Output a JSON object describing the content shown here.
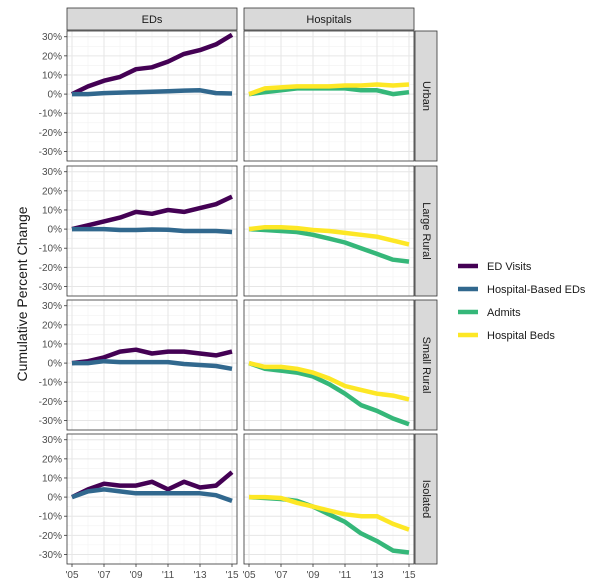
{
  "chart_data": {
    "type": "line",
    "ylabel": "Cumulative Percent Change",
    "xlabel": "",
    "columns": [
      "EDs",
      "Hospitals"
    ],
    "rows": [
      "Urban",
      "Large Rural",
      "Small Rural",
      "Isolated"
    ],
    "x": [
      2005,
      2006,
      2007,
      2008,
      2009,
      2010,
      2011,
      2012,
      2013,
      2014,
      2015
    ],
    "x_tick_labels": [
      "'05",
      "'07",
      "'09",
      "'11",
      "'13",
      "'15"
    ],
    "x_tick_values": [
      2005,
      2007,
      2009,
      2011,
      2013,
      2015
    ],
    "ylim": [
      -35,
      33
    ],
    "y_tick_labels": [
      "-30%",
      "-20%",
      "-10%",
      "0%",
      "10%",
      "20%",
      "30%"
    ],
    "y_tick_values": [
      -30,
      -20,
      -10,
      0,
      10,
      20,
      30
    ],
    "grid": true,
    "legend_position": "right",
    "legend": [
      {
        "name": "ED Visits",
        "color": "#440154"
      },
      {
        "name": "Hospital-Based EDs",
        "color": "#31688e"
      },
      {
        "name": "Admits",
        "color": "#35b779"
      },
      {
        "name": "Hospital Beds",
        "color": "#fde725"
      }
    ],
    "panels": [
      {
        "row": "Urban",
        "col": "EDs",
        "series": [
          {
            "name": "ED Visits",
            "values": [
              0,
              4,
              7,
              9,
              13,
              14,
              17,
              21,
              23,
              26,
              31
            ]
          },
          {
            "name": "Hospital-Based EDs",
            "values": [
              0,
              0,
              0.5,
              0.8,
              1,
              1.2,
              1.5,
              1.8,
              2,
              0.5,
              0.3
            ]
          }
        ]
      },
      {
        "row": "Urban",
        "col": "Hospitals",
        "series": [
          {
            "name": "Admits",
            "values": [
              0,
              1,
              2,
              3,
              3,
              3,
              3,
              2,
              2,
              0,
              1
            ]
          },
          {
            "name": "Hospital Beds",
            "values": [
              0,
              3,
              3.5,
              4,
              4,
              4,
              4.5,
              4.5,
              5,
              4.5,
              5
            ]
          }
        ]
      },
      {
        "row": "Large Rural",
        "col": "EDs",
        "series": [
          {
            "name": "ED Visits",
            "values": [
              0,
              2,
              4,
              6,
              9,
              8,
              10,
              9,
              11,
              13,
              17
            ]
          },
          {
            "name": "Hospital-Based EDs",
            "values": [
              0,
              0,
              0,
              -0.5,
              -0.5,
              -0.2,
              -0.3,
              -1,
              -1,
              -1,
              -1.5
            ]
          }
        ]
      },
      {
        "row": "Large Rural",
        "col": "Hospitals",
        "series": [
          {
            "name": "Admits",
            "values": [
              0,
              -0.5,
              -1,
              -1.5,
              -3,
              -5,
              -7,
              -10,
              -13,
              -16,
              -17
            ]
          },
          {
            "name": "Hospital Beds",
            "values": [
              0,
              1,
              1,
              0.5,
              -0.5,
              -1,
              -2,
              -3,
              -4,
              -6,
              -8
            ]
          }
        ]
      },
      {
        "row": "Small Rural",
        "col": "EDs",
        "series": [
          {
            "name": "ED Visits",
            "values": [
              0,
              1,
              3,
              6,
              7,
              5,
              6,
              6,
              5,
              4,
              6
            ]
          },
          {
            "name": "Hospital-Based EDs",
            "values": [
              0,
              0,
              1,
              0.5,
              0.5,
              0.5,
              0.5,
              -0.5,
              -1,
              -1.5,
              -3
            ]
          }
        ]
      },
      {
        "row": "Small Rural",
        "col": "Hospitals",
        "series": [
          {
            "name": "Admits",
            "values": [
              0,
              -3,
              -4,
              -5,
              -7,
              -11,
              -16,
              -22,
              -25,
              -29,
              -32
            ]
          },
          {
            "name": "Hospital Beds",
            "values": [
              0,
              -2,
              -2,
              -3,
              -5,
              -8,
              -12,
              -14,
              -16,
              -17,
              -19
            ]
          }
        ]
      },
      {
        "row": "Isolated",
        "col": "EDs",
        "series": [
          {
            "name": "ED Visits",
            "values": [
              0,
              4,
              7,
              6,
              6,
              8,
              4,
              8,
              5,
              6,
              13
            ]
          },
          {
            "name": "Hospital-Based EDs",
            "values": [
              0,
              3,
              4,
              3,
              2,
              2,
              2,
              2,
              2,
              1,
              -2
            ]
          }
        ]
      },
      {
        "row": "Isolated",
        "col": "Hospitals",
        "series": [
          {
            "name": "Admits",
            "values": [
              0,
              -0.5,
              -1,
              -2,
              -5,
              -9,
              -13,
              -19,
              -23,
              -28,
              -29
            ]
          },
          {
            "name": "Hospital Beds",
            "values": [
              0,
              0,
              -0.5,
              -3,
              -5,
              -7,
              -9,
              -10,
              -10,
              -14,
              -17
            ]
          }
        ]
      }
    ]
  }
}
